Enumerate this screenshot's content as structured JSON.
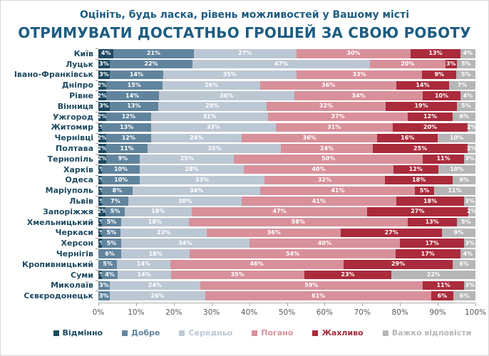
{
  "header": {
    "subtitle": "Оцініть, будь ласка, рівень можливостей у Вашому місті",
    "title": "ОТРИМУВАТИ ДОСТАТНЬО ГРОШЕЙ ЗА СВОЮ РОБОТУ"
  },
  "chart_data": {
    "type": "bar",
    "stacked": true,
    "orientation": "horizontal",
    "title": "ОТРИМУВАТИ ДОСТАТНЬО ГРОШЕЙ ЗА СВОЮ РОБОТУ",
    "subtitle": "Оцініть, будь ласка, рівень можливостей у Вашому місті",
    "xlim": [
      0,
      100
    ],
    "x_ticks": [
      "0%",
      "10%",
      "20%",
      "30%",
      "40%",
      "50%",
      "60%",
      "70%",
      "80%",
      "90%",
      "100%"
    ],
    "grid": false,
    "legend_position": "bottom",
    "value_suffix": "%",
    "categories": [
      "Київ",
      "Луцьк",
      "Івано-Франківськ",
      "Дніпро",
      "Рівне",
      "Вінниця",
      "Ужгород",
      "Житомир",
      "Чернівці",
      "Полтава",
      "Тернопіль",
      "Харків",
      "Одеса",
      "Маріуполь",
      "Львів",
      "Запоріжжя",
      "Хмельницький",
      "Черкаси",
      "Херсон",
      "Чернігів",
      "Кропивницький",
      "Суми",
      "Миколаїв",
      "Сєвєродонецьк"
    ],
    "series": [
      {
        "name": "Відмінно",
        "color": "#1d4a61",
        "values": [
          4,
          3,
          3,
          2,
          2,
          3,
          2,
          1,
          2,
          2,
          2,
          1,
          1,
          1,
          1,
          2,
          1,
          1,
          1,
          0,
          0,
          1,
          0,
          0
        ]
      },
      {
        "name": "Добре",
        "color": "#61849d",
        "values": [
          21,
          22,
          14,
          15,
          14,
          13,
          12,
          13,
          12,
          11,
          9,
          10,
          10,
          8,
          7,
          5,
          5,
          5,
          5,
          6,
          5,
          4,
          3,
          3
        ]
      },
      {
        "name": "Середньо",
        "color": "#bcc7d4",
        "values": [
          27,
          47,
          35,
          26,
          36,
          29,
          31,
          33,
          24,
          35,
          25,
          28,
          33,
          34,
          30,
          18,
          18,
          23,
          34,
          18,
          14,
          14,
          24,
          26
        ]
      },
      {
        "name": "Погано",
        "color": "#d8909a",
        "values": [
          30,
          20,
          33,
          36,
          34,
          32,
          37,
          31,
          36,
          24,
          50,
          40,
          32,
          41,
          41,
          47,
          58,
          36,
          40,
          54,
          46,
          35,
          59,
          61
        ]
      },
      {
        "name": "Жахливо",
        "color": "#aa2b3b",
        "values": [
          13,
          3,
          9,
          14,
          10,
          19,
          12,
          20,
          16,
          25,
          11,
          12,
          18,
          5,
          18,
          27,
          13,
          27,
          17,
          17,
          29,
          23,
          11,
          6
        ]
      },
      {
        "name": "Важко відповісти",
        "color": "#b6b6b6",
        "values": [
          4,
          5,
          5,
          7,
          4,
          5,
          6,
          2,
          10,
          2,
          3,
          10,
          6,
          11,
          3,
          2,
          5,
          9,
          3,
          4,
          6,
          22,
          3,
          6
        ]
      }
    ]
  }
}
